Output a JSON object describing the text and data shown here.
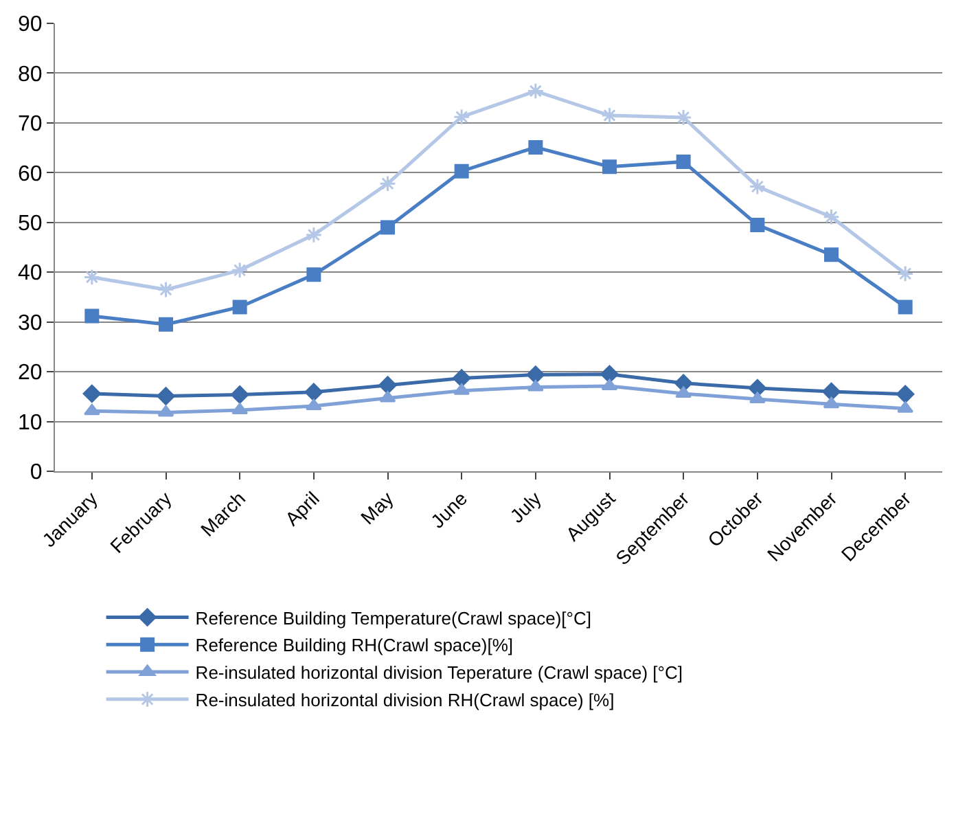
{
  "chart_data": {
    "type": "line",
    "categories": [
      "January",
      "February",
      "March",
      "April",
      "May",
      "June",
      "July",
      "August",
      "September",
      "October",
      "November",
      "December"
    ],
    "series": [
      {
        "name": "Reference Building Temperature(Crawl space)[°C]",
        "color": "#3a6aa8",
        "marker": "diamond",
        "values": [
          15.6,
          15.1,
          15.4,
          15.9,
          17.3,
          18.7,
          19.4,
          19.5,
          17.7,
          16.7,
          16.0,
          15.5
        ]
      },
      {
        "name": "Reference Building RH(Crawl space)[%]",
        "color": "#4a7ec4",
        "marker": "square",
        "values": [
          31.2,
          29.5,
          33.0,
          39.5,
          49.0,
          60.3,
          65.1,
          61.2,
          62.2,
          49.5,
          43.5,
          33.0
        ]
      },
      {
        "name": "Re-insulated horizontal division Teperature (Crawl space) [°C]",
        "color": "#7fa1d8",
        "marker": "triangle",
        "values": [
          12.1,
          11.8,
          12.3,
          13.1,
          14.7,
          16.2,
          16.9,
          17.1,
          15.6,
          14.5,
          13.5,
          12.6
        ]
      },
      {
        "name": "Re-insulated horizontal division RH(Crawl space) [%]",
        "color": "#b4c7e7",
        "marker": "cross",
        "values": [
          39.0,
          36.5,
          40.4,
          47.5,
          57.8,
          71.2,
          76.4,
          71.5,
          71.1,
          57.2,
          51.1,
          39.7
        ]
      }
    ],
    "ylim": [
      0,
      90
    ],
    "yticks": [
      0,
      10,
      20,
      30,
      40,
      50,
      60,
      70,
      80,
      90
    ],
    "grid": "y",
    "legend": "bottom",
    "line_style": "solid"
  }
}
